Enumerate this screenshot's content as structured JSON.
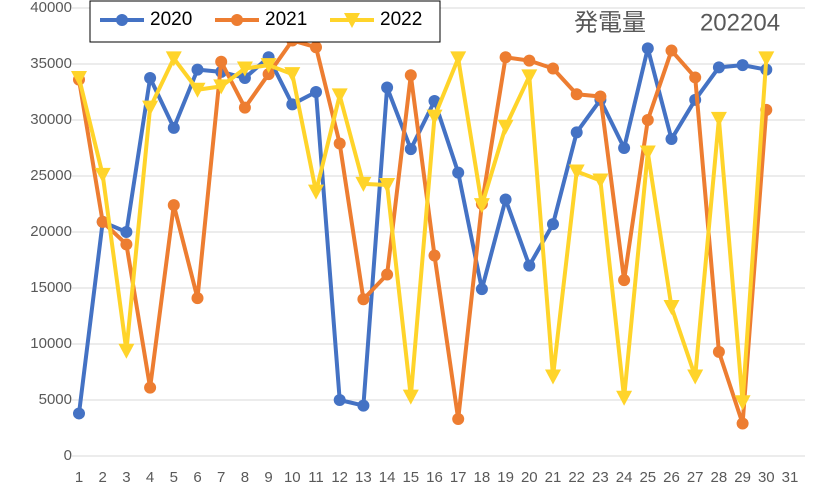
{
  "chart_data": {
    "type": "line",
    "title": "発電量",
    "subtitle": "202204",
    "categories": [
      "1",
      "2",
      "3",
      "4",
      "5",
      "6",
      "7",
      "8",
      "9",
      "10",
      "11",
      "12",
      "13",
      "14",
      "15",
      "16",
      "17",
      "18",
      "19",
      "20",
      "21",
      "22",
      "23",
      "24",
      "25",
      "26",
      "27",
      "28",
      "29",
      "30",
      "31"
    ],
    "series": [
      {
        "name": "2020",
        "color": "#4472c4",
        "marker": "circle",
        "values": [
          3800,
          20900,
          20000,
          33750,
          29300,
          34500,
          34300,
          33750,
          35600,
          31400,
          32500,
          5000,
          4500,
          32900,
          27400,
          31700,
          25300,
          14900,
          22900,
          17000,
          20700,
          28900,
          31800,
          27500,
          36400,
          28300,
          31800,
          34700,
          34900,
          34500,
          null
        ]
      },
      {
        "name": "2021",
        "color": "#ed7d31",
        "marker": "circle",
        "values": [
          33600,
          20900,
          18900,
          6100,
          22400,
          14100,
          35200,
          31100,
          34100,
          37100,
          36500,
          27900,
          14000,
          16200,
          34000,
          17900,
          3300,
          22500,
          35600,
          35300,
          34600,
          32300,
          32100,
          15700,
          30000,
          36200,
          33800,
          9300,
          2900,
          30900,
          null
        ]
      },
      {
        "name": "2022",
        "color": "#ffd42a",
        "marker": "triangle-down",
        "values": [
          33750,
          25100,
          9400,
          31100,
          35500,
          32700,
          33000,
          34600,
          34900,
          34100,
          23600,
          32200,
          24300,
          24200,
          5300,
          30300,
          35500,
          22400,
          29400,
          33900,
          7100,
          25400,
          24600,
          5200,
          27100,
          13300,
          7100,
          30100,
          4800,
          35500,
          null
        ]
      }
    ],
    "ylim": [
      0,
      40000
    ],
    "yticks": [
      0,
      5000,
      10000,
      15000,
      20000,
      25000,
      30000,
      35000,
      40000
    ],
    "grid": true
  }
}
